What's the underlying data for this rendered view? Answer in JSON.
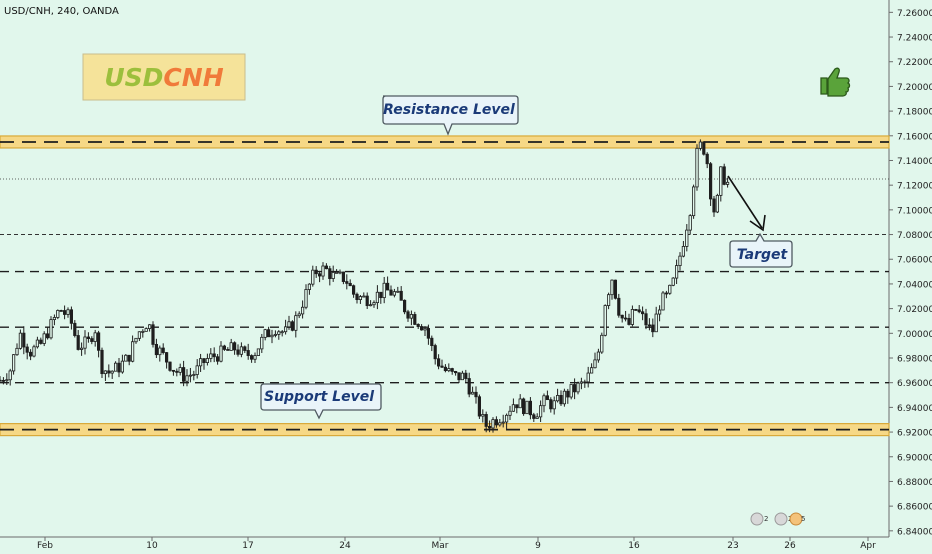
{
  "header": {
    "symbol_title": "USD/CNH, 240, OANDA"
  },
  "colors": {
    "background": "#e1f7ec",
    "candle_body": "#1e1e1e",
    "zone_fill": "#f6d886",
    "zone_border": "#d8a93a",
    "logo_box": "#f5e39a",
    "logo_usd": "#9cbf3c",
    "logo_cnh": "#f07a3a",
    "callout_text": "#1b3a78",
    "thumb_icon": "#5aa33a"
  },
  "chart_data": {
    "type": "candlestick",
    "title": "USD/CNH, 240, OANDA",
    "ylim": [
      6.835,
      7.27
    ],
    "grid": false,
    "y_ticks": [
      "7.26000",
      "7.24000",
      "7.22000",
      "7.20000",
      "7.18000",
      "7.16000",
      "7.14000",
      "7.12000",
      "7.10000",
      "7.08000",
      "7.06000",
      "7.04000",
      "7.02000",
      "7.00000",
      "6.98000",
      "6.96000",
      "6.94000",
      "6.92000",
      "6.90000",
      "6.88000",
      "6.86000",
      "6.84000"
    ],
    "x_ticks": [
      "Feb",
      "10",
      "17",
      "24",
      "Mar",
      "9",
      "16",
      "23",
      "26",
      "Apr"
    ],
    "x_index_range": [
      0,
      860
    ],
    "x_tick_index": [
      45,
      152,
      248,
      345,
      440,
      538,
      634,
      733,
      790,
      868
    ],
    "price_points": [
      [
        0,
        6.962
      ],
      [
        10,
        6.97
      ],
      [
        20,
        7.0
      ],
      [
        30,
        6.985
      ],
      [
        40,
        6.99
      ],
      [
        50,
        7.005
      ],
      [
        60,
        7.02
      ],
      [
        70,
        7.012
      ],
      [
        78,
        6.99
      ],
      [
        88,
        6.992
      ],
      [
        95,
        7.005
      ],
      [
        100,
        6.975
      ],
      [
        108,
        6.968
      ],
      [
        118,
        6.972
      ],
      [
        128,
        6.98
      ],
      [
        138,
        7.0
      ],
      [
        148,
        7.01
      ],
      [
        155,
        6.99
      ],
      [
        165,
        6.98
      ],
      [
        175,
        6.97
      ],
      [
        185,
        6.965
      ],
      [
        195,
        6.968
      ],
      [
        205,
        6.978
      ],
      [
        215,
        6.982
      ],
      [
        225,
        6.985
      ],
      [
        235,
        6.988
      ],
      [
        245,
        6.982
      ],
      [
        255,
        6.985
      ],
      [
        265,
        6.998
      ],
      [
        275,
        7.005
      ],
      [
        285,
        7.0
      ],
      [
        295,
        7.01
      ],
      [
        305,
        7.03
      ],
      [
        315,
        7.05
      ],
      [
        325,
        7.052
      ],
      [
        335,
        7.045
      ],
      [
        345,
        7.045
      ],
      [
        355,
        7.03
      ],
      [
        365,
        7.028
      ],
      [
        375,
        7.03
      ],
      [
        385,
        7.035
      ],
      [
        395,
        7.032
      ],
      [
        405,
        7.02
      ],
      [
        415,
        7.012
      ],
      [
        425,
        7.005
      ],
      [
        435,
        6.98
      ],
      [
        445,
        6.97
      ],
      [
        455,
        6.965
      ],
      [
        465,
        6.965
      ],
      [
        475,
        6.945
      ],
      [
        485,
        6.925
      ],
      [
        495,
        6.93
      ],
      [
        505,
        6.935
      ],
      [
        515,
        6.945
      ],
      [
        525,
        6.94
      ],
      [
        535,
        6.935
      ],
      [
        545,
        6.945
      ],
      [
        555,
        6.942
      ],
      [
        565,
        6.95
      ],
      [
        575,
        6.955
      ],
      [
        585,
        6.96
      ],
      [
        595,
        6.975
      ],
      [
        600,
        6.99
      ],
      [
        605,
        7.025
      ],
      [
        612,
        7.045
      ],
      [
        620,
        7.015
      ],
      [
        628,
        7.005
      ],
      [
        635,
        7.02
      ],
      [
        645,
        7.01
      ],
      [
        652,
        7.0
      ],
      [
        660,
        7.025
      ],
      [
        668,
        7.03
      ],
      [
        675,
        7.045
      ],
      [
        682,
        7.07
      ],
      [
        690,
        7.1
      ],
      [
        697,
        7.145
      ],
      [
        702,
        7.155
      ],
      [
        707,
        7.14
      ],
      [
        712,
        7.105
      ],
      [
        716,
        7.095
      ],
      [
        720,
        7.13
      ],
      [
        725,
        7.125
      ],
      [
        730,
        7.118
      ]
    ]
  },
  "levels": [
    {
      "label": "Resistance Level",
      "price": 7.155,
      "kind": "zone"
    },
    {
      "label": "Support Level",
      "price": 6.922,
      "kind": "zone"
    },
    {
      "label": "",
      "price": 7.05,
      "kind": "dashed"
    },
    {
      "label": "",
      "price": 7.005,
      "kind": "dashed"
    },
    {
      "label": "",
      "price": 6.96,
      "kind": "dashed"
    },
    {
      "label": "",
      "price": 7.08,
      "kind": "thin-dashed"
    },
    {
      "label": "",
      "price": 7.125,
      "kind": "dotted"
    }
  ],
  "annotations": {
    "logo": {
      "usd": "USD",
      "cnh": "CNH"
    },
    "resistance_label": "Resistance Level",
    "support_label": "Support Level",
    "target_label": "Target",
    "thumb_icon": "thumbs-up-icon",
    "event_badges": [
      "2",
      "2",
      "5"
    ]
  }
}
